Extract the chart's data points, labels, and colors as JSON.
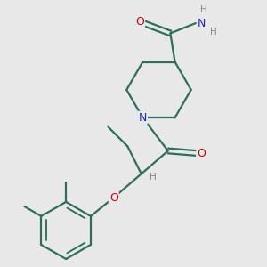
{
  "bg_color": "#e8e8e8",
  "bond_color": "#2d6e5e",
  "bond_width": 1.6,
  "atom_colors": {
    "O": "#cc0000",
    "N": "#2222cc",
    "H": "#888888"
  },
  "font_size": 9.0,
  "font_size_h": 7.5,
  "xlim": [
    0.0,
    5.8
  ],
  "ylim": [
    0.2,
    6.0
  ]
}
